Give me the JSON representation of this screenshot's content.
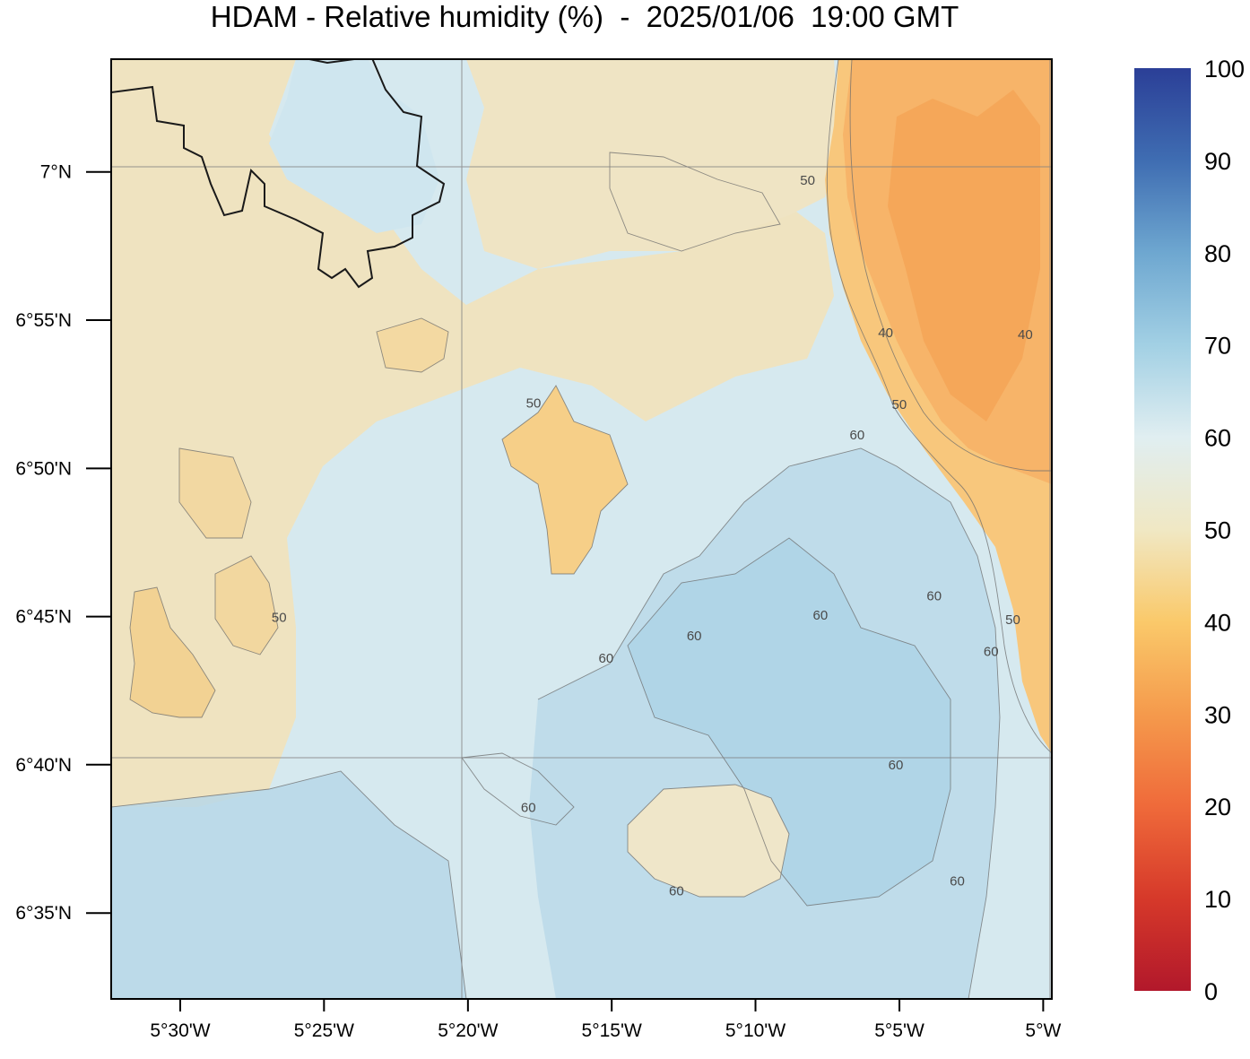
{
  "title": "HDAM - Relative humidity (%)  -  2025/01/06  19:00 GMT",
  "map": {
    "lon_range": [
      -5.54,
      -4.995
    ],
    "lat_range": [
      6.535,
      7.0634
    ],
    "gridlines_lon": [
      -5.3333,
      -5.0
    ],
    "gridlines_lat": [
      7.0,
      6.6667
    ],
    "lon_ticks": [
      {
        "value": -5.5,
        "label": "5°30'W"
      },
      {
        "value": -5.4167,
        "label": "5°25'W"
      },
      {
        "value": -5.3333,
        "label": "5°20'W"
      },
      {
        "value": -5.25,
        "label": "5°15'W"
      },
      {
        "value": -5.1667,
        "label": "5°10'W"
      },
      {
        "value": -5.0833,
        "label": "5°5'W"
      },
      {
        "value": -5.0,
        "label": "5°W"
      }
    ],
    "lat_ticks": [
      {
        "value": 7.0,
        "label": "7°N"
      },
      {
        "value": 6.9167,
        "label": "6°55'N"
      },
      {
        "value": 6.8333,
        "label": "6°50'N"
      },
      {
        "value": 6.75,
        "label": "6°45'N"
      },
      {
        "value": 6.6667,
        "label": "6°40'N"
      },
      {
        "value": 6.5833,
        "label": "6°35'N"
      }
    ],
    "contour_labels": [
      {
        "text": "50",
        "lon": -5.1365,
        "lat": 6.9953
      },
      {
        "text": "40",
        "lon": -5.0913,
        "lat": 6.9095
      },
      {
        "text": "40",
        "lon": -5.0104,
        "lat": 6.9087
      },
      {
        "text": "50",
        "lon": -5.0834,
        "lat": 6.8693
      },
      {
        "text": "50",
        "lon": -5.2953,
        "lat": 6.8701
      },
      {
        "text": "60",
        "lon": -5.1078,
        "lat": 6.8521
      },
      {
        "text": "60",
        "lon": -5.0632,
        "lat": 6.7617
      },
      {
        "text": "60",
        "lon": -5.1291,
        "lat": 6.7508
      },
      {
        "text": "60",
        "lon": -5.2022,
        "lat": 6.7391
      },
      {
        "text": "60",
        "lon": -5.2533,
        "lat": 6.7266
      },
      {
        "text": "50",
        "lon": -5.0176,
        "lat": 6.7484
      },
      {
        "text": "60",
        "lon": -5.0302,
        "lat": 6.7305
      },
      {
        "text": "50",
        "lon": -5.4427,
        "lat": 6.7495
      },
      {
        "text": "60",
        "lon": -5.0854,
        "lat": 6.6667
      },
      {
        "text": "60",
        "lon": -5.2983,
        "lat": 6.6427
      },
      {
        "text": "60",
        "lon": -5.2125,
        "lat": 6.5958
      },
      {
        "text": "60",
        "lon": -5.0498,
        "lat": 6.6013
      }
    ],
    "humidity_zones": [
      {
        "name": "northeast-dry-zone",
        "range": "30-50"
      },
      {
        "name": "central-dry-patch",
        "range": "40-50"
      },
      {
        "name": "western-dry-patches",
        "range": "40-50"
      },
      {
        "name": "southeast-moist-zone",
        "range": "60-70"
      },
      {
        "name": "southern-moist-zone",
        "range": "60-70"
      }
    ]
  },
  "colorbar": {
    "min": 0,
    "max": 100,
    "tick_labels": [
      "0",
      "10",
      "20",
      "30",
      "40",
      "50",
      "60",
      "70",
      "80",
      "90",
      "100"
    ],
    "colors": [
      "#b2182b",
      "#d6392a",
      "#ef6a3a",
      "#f59a4c",
      "#fac96a",
      "#f0e8c4",
      "#e0eef1",
      "#a2d0e4",
      "#6ea7d0",
      "#3f6db2",
      "#2b3f97"
    ]
  }
}
